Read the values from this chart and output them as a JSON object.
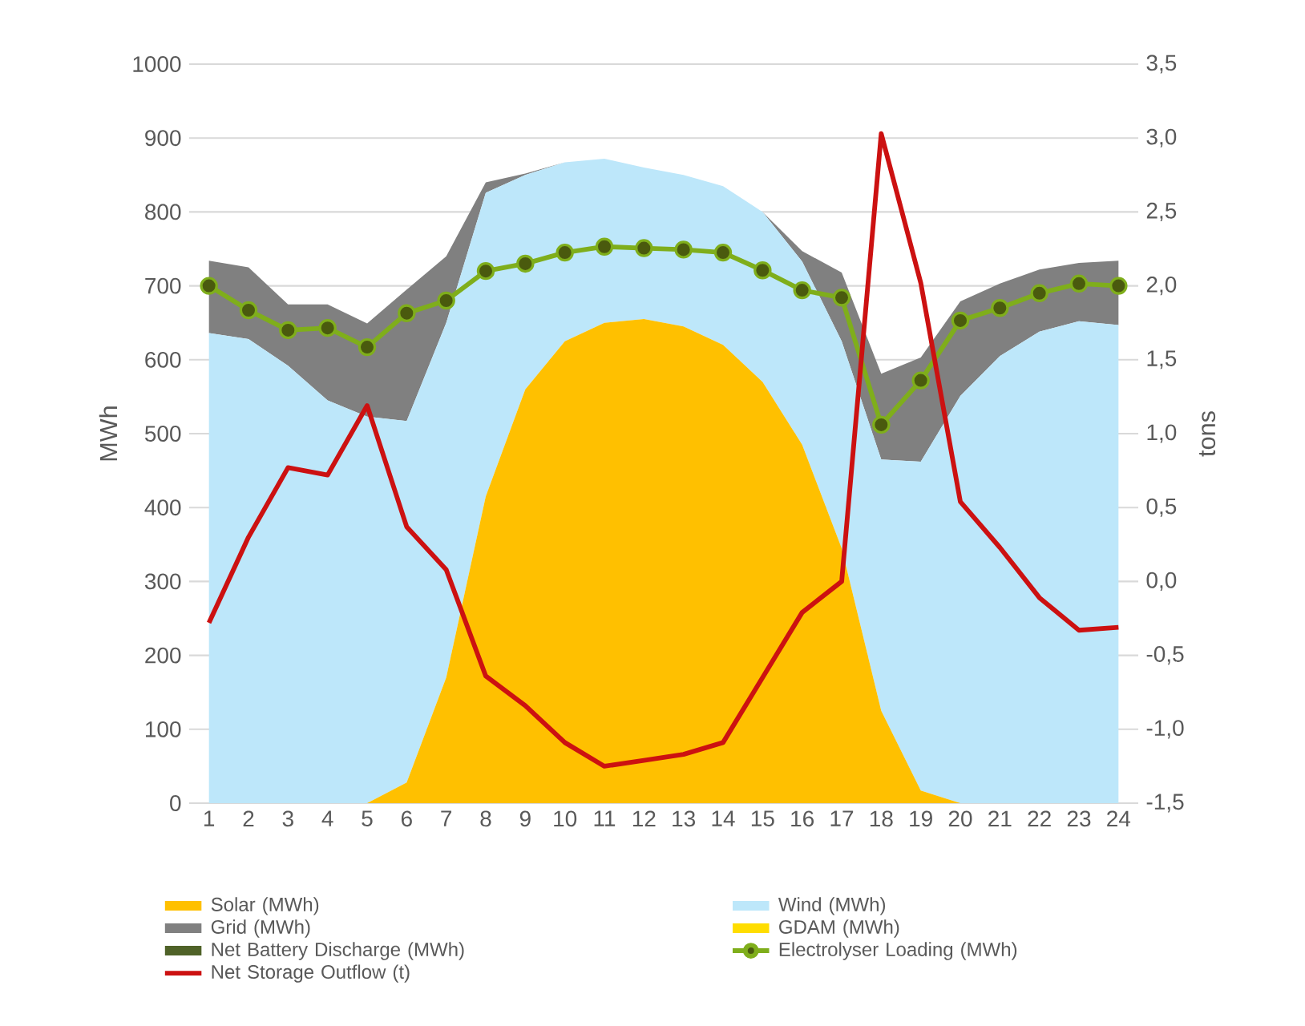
{
  "chart_data": {
    "type": "area",
    "stacked": true,
    "categories": [
      "1",
      "2",
      "3",
      "4",
      "5",
      "6",
      "7",
      "8",
      "9",
      "10",
      "11",
      "12",
      "13",
      "14",
      "15",
      "16",
      "17",
      "18",
      "19",
      "20",
      "21",
      "22",
      "23",
      "24"
    ],
    "ylabel": "MWh",
    "y2label": "tons",
    "ylim": [
      0,
      1000
    ],
    "yticks": [
      0,
      100,
      200,
      300,
      400,
      500,
      600,
      700,
      800,
      900,
      1000
    ],
    "y2lim": [
      -1.5,
      3.5
    ],
    "y2ticks": [
      {
        "value": -1.5,
        "label": "-1,5"
      },
      {
        "value": -1.0,
        "label": "-1,0"
      },
      {
        "value": -0.5,
        "label": "-0,5"
      },
      {
        "value": 0.0,
        "label": "0,0"
      },
      {
        "value": 0.5,
        "label": "0,5"
      },
      {
        "value": 1.0,
        "label": "1,0"
      },
      {
        "value": 1.5,
        "label": "1,5"
      },
      {
        "value": 2.0,
        "label": "2,0"
      },
      {
        "value": 2.5,
        "label": "2,5"
      },
      {
        "value": 3.0,
        "label": "3,0"
      },
      {
        "value": 3.5,
        "label": "3,5"
      }
    ],
    "grid": "y",
    "legend": "bottom",
    "series": [
      {
        "name": "Solar (MWh)",
        "color": "#ffc000",
        "values": [
          0,
          0,
          0,
          0,
          0,
          28,
          170,
          415,
          560,
          625,
          650,
          655,
          645,
          620,
          570,
          485,
          345,
          125,
          17,
          0,
          0,
          0,
          0,
          0
        ]
      },
      {
        "name": "Wind (MWh)",
        "color": "#bde7fa",
        "values": [
          636,
          628,
          592,
          545,
          523,
          489,
          480,
          411,
          290,
          242,
          222,
          205,
          205,
          215,
          230,
          248,
          280,
          340,
          445,
          551,
          605,
          638,
          652,
          647
        ]
      },
      {
        "name": "Grid (MWh)",
        "color": "#808080",
        "values": [
          98,
          97,
          83,
          130,
          126,
          178,
          90,
          14,
          2,
          0,
          0,
          0,
          0,
          0,
          0,
          14,
          93,
          116,
          141,
          128,
          98,
          84,
          79,
          87
        ]
      },
      {
        "name": "GDAM (MWh)",
        "color": "#ffdd00",
        "values": [
          null,
          null,
          null,
          null,
          null,
          null,
          null,
          null,
          null,
          null,
          null,
          null,
          null,
          null,
          null,
          null,
          null,
          null,
          null,
          null,
          null,
          null,
          null,
          null
        ]
      },
      {
        "name": "Net Battery Discharge (MWh)",
        "color": "#4f6228",
        "values": [
          null,
          null,
          null,
          null,
          null,
          null,
          null,
          null,
          null,
          null,
          null,
          null,
          null,
          null,
          null,
          null,
          null,
          null,
          null,
          null,
          null,
          null,
          null,
          null
        ]
      },
      {
        "name": "Electrolyser Loading (MWh)",
        "type": "line",
        "color": "#7fae1b",
        "marker": "circle",
        "line_style": "solid",
        "values": [
          700,
          667,
          640,
          643,
          617,
          663,
          680,
          720,
          730,
          745,
          753,
          751,
          749,
          745,
          721,
          694,
          684,
          512,
          572,
          653,
          670,
          690,
          703,
          700
        ]
      },
      {
        "name": "Net Storage Outflow (t)",
        "type": "line",
        "axis": "y2",
        "color": "#cc1111",
        "line_style": "solid",
        "values": [
          -0.28,
          0.3,
          0.77,
          0.72,
          1.19,
          0.37,
          0.08,
          -0.64,
          -0.84,
          -1.09,
          -1.25,
          -1.21,
          -1.17,
          -1.09,
          -0.65,
          -0.21,
          0.0,
          3.03,
          2.02,
          0.54,
          0.23,
          -0.11,
          -0.33,
          -0.31
        ]
      }
    ]
  }
}
